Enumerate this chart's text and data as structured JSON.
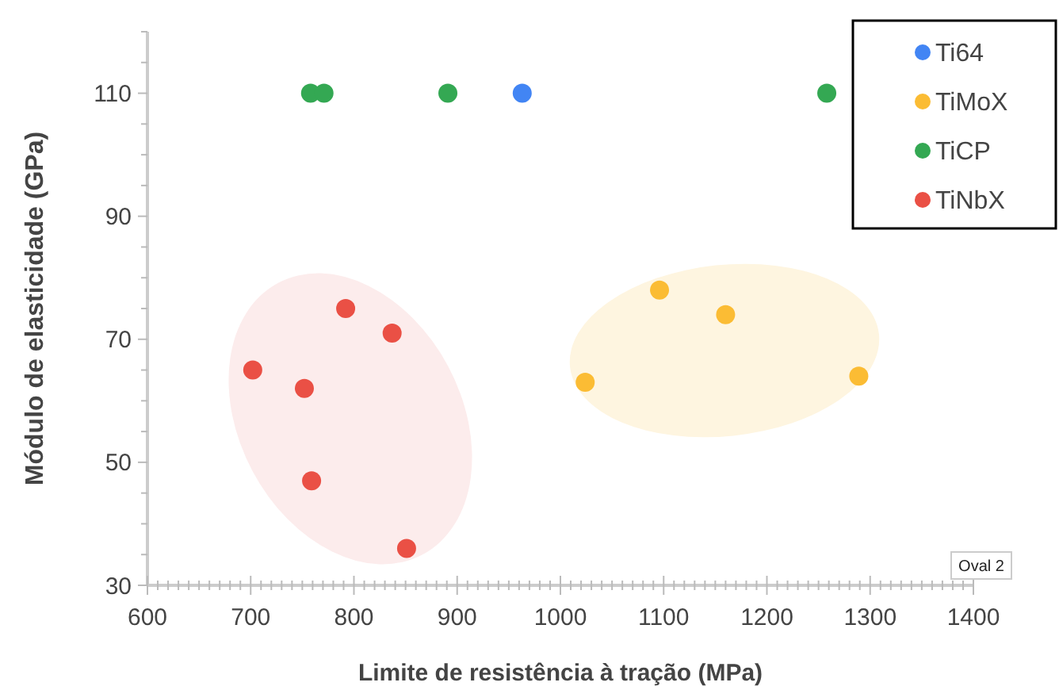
{
  "chart_data": {
    "type": "scatter",
    "xlabel": "Limite de resistência à tração (MPa)",
    "ylabel": "Módulo de elasticidade (GPa)",
    "xlim": [
      600,
      1400
    ],
    "ylim": [
      30,
      120
    ],
    "xticks": [
      600,
      {
        "value": 610,
        "label": null
      },
      {
        "value": 620,
        "label": null
      },
      {
        "value": 630,
        "label": null
      },
      {
        "value": 640,
        "label": null
      },
      {
        "value": 650,
        "label": null
      },
      {
        "value": 660,
        "label": null
      },
      {
        "value": 670,
        "label": null
      },
      {
        "value": 680,
        "label": null
      },
      {
        "value": 690,
        "label": null
      },
      700,
      {
        "value": 710,
        "label": null
      },
      {
        "value": 720,
        "label": null
      },
      {
        "value": 730,
        "label": null
      },
      {
        "value": 740,
        "label": null
      },
      {
        "value": 750,
        "label": null
      },
      {
        "value": 760,
        "label": null
      },
      {
        "value": 770,
        "label": null
      },
      {
        "value": 780,
        "label": null
      },
      {
        "value": 790,
        "label": null
      },
      800,
      {
        "value": 810,
        "label": null
      },
      {
        "value": 820,
        "label": null
      },
      {
        "value": 830,
        "label": null
      },
      {
        "value": 840,
        "label": null
      },
      {
        "value": 850,
        "label": null
      },
      {
        "value": 860,
        "label": null
      },
      {
        "value": 870,
        "label": null
      },
      {
        "value": 880,
        "label": null
      },
      {
        "value": 890,
        "label": null
      },
      900,
      {
        "value": 910,
        "label": null
      },
      {
        "value": 920,
        "label": null
      },
      {
        "value": 930,
        "label": null
      },
      {
        "value": 940,
        "label": null
      },
      {
        "value": 950,
        "label": null
      },
      {
        "value": 960,
        "label": null
      },
      {
        "value": 970,
        "label": null
      },
      {
        "value": 980,
        "label": null
      },
      {
        "value": 990,
        "label": null
      },
      1000,
      {
        "value": 1010,
        "label": null
      },
      {
        "value": 1020,
        "label": null
      },
      {
        "value": 1030,
        "label": null
      },
      {
        "value": 1040,
        "label": null
      },
      {
        "value": 1050,
        "label": null
      },
      {
        "value": 1060,
        "label": null
      },
      {
        "value": 1070,
        "label": null
      },
      {
        "value": 1080,
        "label": null
      },
      {
        "value": 1090,
        "label": null
      },
      1100,
      {
        "value": 1110,
        "label": null
      },
      {
        "value": 1120,
        "label": null
      },
      {
        "value": 1130,
        "label": null
      },
      {
        "value": 1140,
        "label": null
      },
      {
        "value": 1150,
        "label": null
      },
      {
        "value": 1160,
        "label": null
      },
      {
        "value": 1170,
        "label": null
      },
      {
        "value": 1180,
        "label": null
      },
      {
        "value": 1190,
        "label": null
      },
      1200,
      {
        "value": 1210,
        "label": null
      },
      {
        "value": 1220,
        "label": null
      },
      {
        "value": 1230,
        "label": null
      },
      {
        "value": 1240,
        "label": null
      },
      {
        "value": 1250,
        "label": null
      },
      {
        "value": 1260,
        "label": null
      },
      {
        "value": 1270,
        "label": null
      },
      {
        "value": 1280,
        "label": null
      },
      {
        "value": 1290,
        "label": null
      },
      1300,
      {
        "value": 1310,
        "label": null
      },
      {
        "value": 1320,
        "label": null
      },
      {
        "value": 1330,
        "label": null
      },
      {
        "value": 1340,
        "label": null
      },
      {
        "value": 1350,
        "label": null
      },
      {
        "value": 1360,
        "label": null
      },
      {
        "value": 1370,
        "label": null
      },
      {
        "value": 1380,
        "label": null
      },
      {
        "value": 1390,
        "label": null
      },
      1400
    ],
    "yticks": [
      30,
      {
        "value": 35,
        "label": null
      },
      {
        "value": 40,
        "label": null
      },
      {
        "value": 45,
        "label": null
      },
      50,
      {
        "value": 55,
        "label": null
      },
      {
        "value": 60,
        "label": null
      },
      {
        "value": 65,
        "label": null
      },
      70,
      {
        "value": 75,
        "label": null
      },
      {
        "value": 80,
        "label": null
      },
      {
        "value": 85,
        "label": null
      },
      90,
      {
        "value": 95,
        "label": null
      },
      {
        "value": 100,
        "label": null
      },
      {
        "value": 105,
        "label": null
      },
      110,
      {
        "value": 115,
        "label": null
      },
      {
        "value": 120,
        "label": null
      }
    ],
    "grid": false,
    "legend": "top right",
    "marker": "circle",
    "annotations": [
      "Oval 2"
    ],
    "series": [
      {
        "name": "Ti64",
        "color": "#4285f4",
        "x": [
          963
        ],
        "values": [
          110
        ]
      },
      {
        "name": "TiMoX",
        "color": "#fbbc34",
        "x": [
          1024,
          1096,
          1160,
          1289
        ],
        "values": [
          63,
          78,
          74,
          64
        ]
      },
      {
        "name": "TiCP",
        "color": "#34a853",
        "x": [
          758,
          771,
          891,
          1258
        ],
        "values": [
          110,
          110,
          110,
          110
        ]
      },
      {
        "name": "TiNbX",
        "color": "#ea5045",
        "x": [
          702,
          752,
          792,
          837,
          759,
          851
        ],
        "values": [
          65,
          62,
          75,
          71,
          47,
          36
        ]
      }
    ]
  }
}
